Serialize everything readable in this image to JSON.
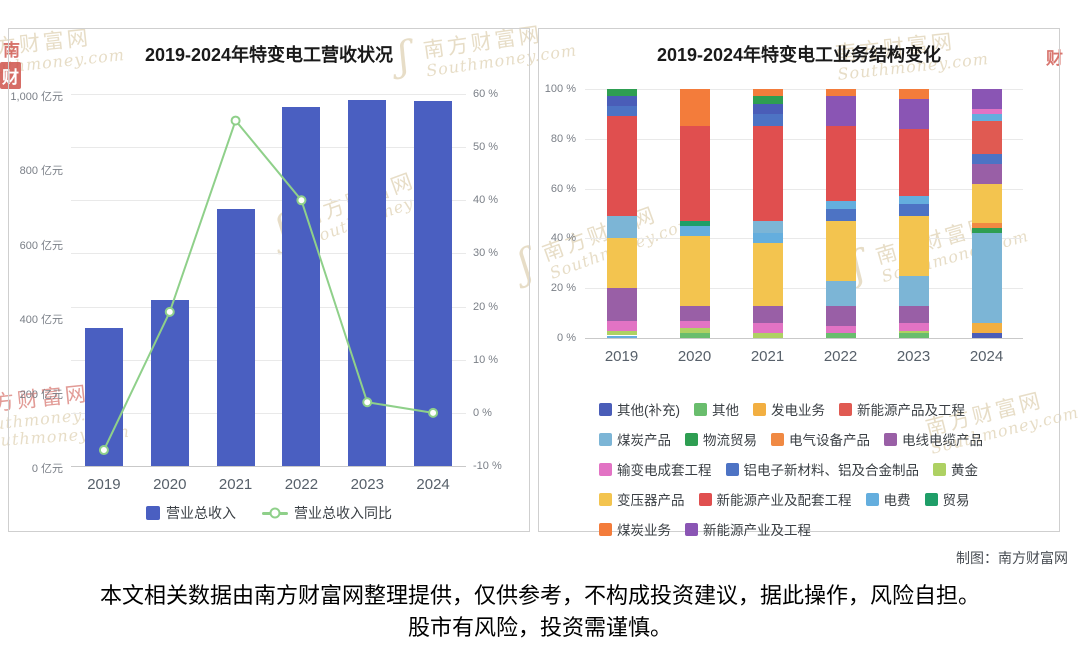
{
  "watermark": {
    "cn": "南方财富网",
    "en": "Southmoney.com"
  },
  "edge_marks": [
    {
      "char": "南",
      "boxed": false
    },
    {
      "char": "财",
      "boxed": true
    },
    {
      "char": "财",
      "boxed": false
    }
  ],
  "credit": "制图：南方财富网",
  "disclaimer": "本文相关数据由南方财富网整理提供，仅供参考，不构成投资建议，据此操作，风险自担。股市有风险，投资需谨慎。",
  "chart_data": [
    {
      "type": "bar",
      "title": "2019-2024年特变电工营收状况",
      "categories": [
        "2019",
        "2020",
        "2021",
        "2022",
        "2023",
        "2024"
      ],
      "series": [
        {
          "name": "营业总收入",
          "kind": "bar",
          "unit": "亿元",
          "color": "#4a5fc1",
          "axis": "left",
          "values": [
            370,
            445,
            690,
            965,
            985,
            980
          ]
        },
        {
          "name": "营业总收入同比",
          "kind": "line",
          "unit": "%",
          "color": "#8fd08a",
          "axis": "right",
          "values": [
            -7,
            19,
            55,
            40,
            2,
            0
          ]
        }
      ],
      "left_axis": {
        "min": 0,
        "max": 1000,
        "ticks": [
          "1,000 亿元",
          "800 亿元",
          "600 亿元",
          "400 亿元",
          "200 亿元",
          "0 亿元"
        ]
      },
      "right_axis": {
        "min": -10,
        "max": 60,
        "ticks": [
          "60 %",
          "50 %",
          "40 %",
          "30 %",
          "20 %",
          "10 %",
          "0 %",
          "-10 %"
        ]
      },
      "grid": true,
      "legend_position": "bottom"
    },
    {
      "type": "bar",
      "subtype": "stacked-100",
      "title": "2019-2024年特变电工业务结构变化",
      "categories": [
        "2019",
        "2020",
        "2021",
        "2022",
        "2023",
        "2024"
      ],
      "ylim": [
        0,
        100
      ],
      "y_ticks": [
        "100 %",
        "80 %",
        "60 %",
        "40 %",
        "20 %",
        "0 %"
      ],
      "grid": true,
      "legend_position": "bottom",
      "legend": [
        {
          "name": "其他(补充)",
          "color": "#4a5db8"
        },
        {
          "name": "其他",
          "color": "#69bd6d"
        },
        {
          "name": "发电业务",
          "color": "#f2af41"
        },
        {
          "name": "新能源产品及工程",
          "color": "#e05a52"
        },
        {
          "name": "煤炭产品",
          "color": "#7cb5d6"
        },
        {
          "name": "物流贸易",
          "color": "#2e9e52"
        },
        {
          "name": "电气设备产品",
          "color": "#f08943"
        },
        {
          "name": "电线电缆产品",
          "color": "#995fa6"
        },
        {
          "name": "输变电成套工程",
          "color": "#e273c4"
        },
        {
          "name": "铝电子新材料、铝及合金制品",
          "color": "#4d73c4"
        },
        {
          "name": "黄金",
          "color": "#aed163"
        },
        {
          "name": "变压器产品",
          "color": "#f3c44f"
        },
        {
          "name": "新能源产业及配套工程",
          "color": "#e04f4f"
        },
        {
          "name": "电费",
          "color": "#64aede"
        },
        {
          "name": "贸易",
          "color": "#1f9e68"
        },
        {
          "name": "煤炭业务",
          "color": "#f37c3b"
        },
        {
          "name": "新能源产业及工程",
          "color": "#8a55b4"
        }
      ],
      "stacks": {
        "2019": [
          {
            "name": "电费",
            "pct": 1
          },
          {
            "name": "黄金",
            "pct": 2
          },
          {
            "name": "输变电成套工程",
            "pct": 4
          },
          {
            "name": "电线电缆产品",
            "pct": 13
          },
          {
            "name": "变压器产品",
            "pct": 20
          },
          {
            "name": "煤炭产品",
            "pct": 9
          },
          {
            "name": "新能源产业及配套工程",
            "pct": 40
          },
          {
            "name": "铝电子新材料、铝及合金制品",
            "pct": 4
          },
          {
            "name": "其他(补充)",
            "pct": 4
          },
          {
            "name": "物流贸易",
            "pct": 3
          }
        ],
        "2020": [
          {
            "name": "其他",
            "pct": 2
          },
          {
            "name": "黄金",
            "pct": 2
          },
          {
            "name": "输变电成套工程",
            "pct": 3
          },
          {
            "name": "电线电缆产品",
            "pct": 6
          },
          {
            "name": "变压器产品",
            "pct": 28
          },
          {
            "name": "电费",
            "pct": 4
          },
          {
            "name": "贸易",
            "pct": 2
          },
          {
            "name": "新能源产业及配套工程",
            "pct": 38
          },
          {
            "name": "煤炭业务",
            "pct": 15
          }
        ],
        "2021": [
          {
            "name": "黄金",
            "pct": 2
          },
          {
            "name": "输变电成套工程",
            "pct": 4
          },
          {
            "name": "电线电缆产品",
            "pct": 7
          },
          {
            "name": "变压器产品",
            "pct": 25
          },
          {
            "name": "电费",
            "pct": 4
          },
          {
            "name": "煤炭产品",
            "pct": 5
          },
          {
            "name": "新能源产业及配套工程",
            "pct": 38
          },
          {
            "name": "铝电子新材料、铝及合金制品",
            "pct": 5
          },
          {
            "name": "其他(补充)",
            "pct": 4
          },
          {
            "name": "物流贸易",
            "pct": 3
          },
          {
            "name": "煤炭业务",
            "pct": 3
          }
        ],
        "2022": [
          {
            "name": "其他",
            "pct": 2
          },
          {
            "name": "输变电成套工程",
            "pct": 3
          },
          {
            "name": "电线电缆产品",
            "pct": 8
          },
          {
            "name": "煤炭产品",
            "pct": 10
          },
          {
            "name": "变压器产品",
            "pct": 24
          },
          {
            "name": "铝电子新材料、铝及合金制品",
            "pct": 5
          },
          {
            "name": "电费",
            "pct": 3
          },
          {
            "name": "新能源产业及配套工程",
            "pct": 30
          },
          {
            "name": "新能源产业及工程",
            "pct": 12
          },
          {
            "name": "煤炭业务",
            "pct": 3
          }
        ],
        "2023": [
          {
            "name": "其他",
            "pct": 2
          },
          {
            "name": "黄金",
            "pct": 1
          },
          {
            "name": "输变电成套工程",
            "pct": 3
          },
          {
            "name": "电线电缆产品",
            "pct": 7
          },
          {
            "name": "煤炭产品",
            "pct": 12
          },
          {
            "name": "变压器产品",
            "pct": 24
          },
          {
            "name": "铝电子新材料、铝及合金制品",
            "pct": 5
          },
          {
            "name": "电费",
            "pct": 3
          },
          {
            "name": "新能源产业及配套工程",
            "pct": 27
          },
          {
            "name": "新能源产业及工程",
            "pct": 12
          },
          {
            "name": "煤炭业务",
            "pct": 4
          }
        ],
        "2024": [
          {
            "name": "其他(补充)",
            "pct": 2
          },
          {
            "name": "发电业务",
            "pct": 4
          },
          {
            "name": "煤炭产品",
            "pct": 36
          },
          {
            "name": "物流贸易",
            "pct": 2
          },
          {
            "name": "电气设备产品",
            "pct": 2
          },
          {
            "name": "变压器产品",
            "pct": 16
          },
          {
            "name": "电线电缆产品",
            "pct": 8
          },
          {
            "name": "铝电子新材料、铝及合金制品",
            "pct": 4
          },
          {
            "name": "新能源产品及工程",
            "pct": 13
          },
          {
            "name": "电费",
            "pct": 3
          },
          {
            "name": "输变电成套工程",
            "pct": 2
          },
          {
            "name": "新能源产业及工程",
            "pct": 8
          }
        ]
      }
    }
  ]
}
